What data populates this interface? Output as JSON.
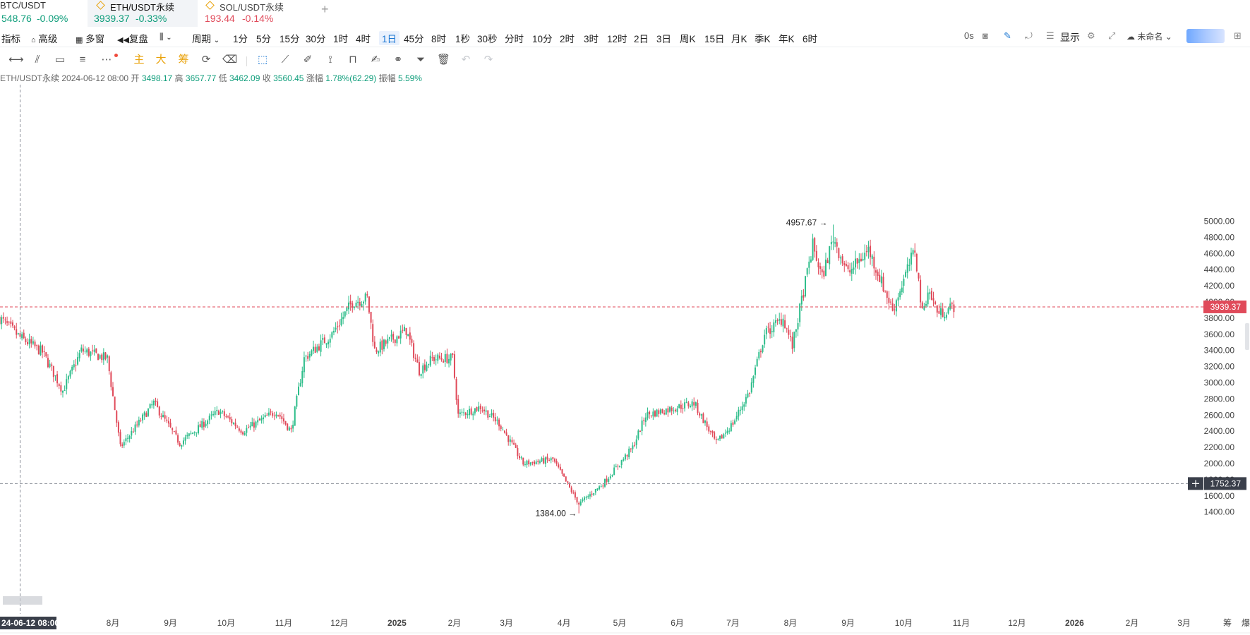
{
  "tabs": [
    {
      "symbol": "BTC/USDT",
      "price": "548.76",
      "change": "-0.09%",
      "trend": "up",
      "active": false
    },
    {
      "symbol": "ETH/USDT永续",
      "price": "3939.37",
      "change": "-0.33%",
      "trend": "up",
      "active": true
    },
    {
      "symbol": "SOL/USDT永续",
      "price": "193.44",
      "change": "-0.14%",
      "trend": "down",
      "active": false
    }
  ],
  "add_tab_label": "+",
  "toolbar": {
    "indicator": "指标",
    "advanced": "高级",
    "multi_window": "多窗",
    "replay": "复盘",
    "period": "周期",
    "periods": [
      "1分",
      "5分",
      "15分",
      "30分",
      "1时",
      "4时",
      "1日",
      "45分",
      "8时",
      "1秒",
      "30秒",
      "分时",
      "10分",
      "2时",
      "3时",
      "12时",
      "2日",
      "3日",
      "周K",
      "15日",
      "月K",
      "季K",
      "年K",
      "6时"
    ],
    "active_period": "1日",
    "timer": "0s",
    "display": "显示",
    "unnamed": "未命名"
  },
  "draw_tools": {
    "main": "主",
    "large": "大",
    "chips": "筹"
  },
  "info_bar": {
    "symbol": "ETH/USDT永续",
    "date": "2024-06-12 08:00",
    "open_label": "开",
    "open": "3498.17",
    "high_label": "高",
    "high": "3657.77",
    "low_label": "低",
    "low": "3462.09",
    "close_label": "收",
    "close": "3560.45",
    "change_label": "涨幅",
    "change": "1.78%(62.29)",
    "amplitude_label": "振幅",
    "amplitude": "5.59%"
  },
  "chart_data": {
    "type": "candlestick",
    "y_ticks": [
      1400,
      1600,
      1800,
      2000,
      2200,
      2400,
      2600,
      2800,
      3000,
      3200,
      3400,
      3600,
      3800,
      4000,
      4200,
      4400,
      4600,
      4800,
      5000
    ],
    "y_tick_labels": [
      "1400.00",
      "1600.00",
      "1800.00",
      "2000.00",
      "2200.00",
      "2400.00",
      "2600.00",
      "2800.00",
      "3000.00",
      "3200.00",
      "3400.00",
      "3600.00",
      "3800.00",
      "4000.00",
      "4200.00",
      "4400.00",
      "4600.00",
      "4800.00",
      "5000.00"
    ],
    "x_labels": [
      "8月",
      "9月",
      "10月",
      "11月",
      "12月",
      "2025",
      "2月",
      "3月",
      "4月",
      "5月",
      "6月",
      "7月",
      "8月",
      "9月",
      "10月",
      "11月",
      "12月",
      "2026",
      "2月",
      "3月"
    ],
    "x_label_dates": [
      "2024-08-01",
      "2024-09-01",
      "2024-10-01",
      "2024-11-01",
      "2024-12-01",
      "2025-01-01",
      "2025-02-01",
      "2025-03-01",
      "2025-04-01",
      "2025-05-01",
      "2025-06-01",
      "2025-07-01",
      "2025-08-01",
      "2025-09-01",
      "2025-10-01",
      "2025-11-01",
      "2025-12-01",
      "2026-01-01",
      "2026-02-01",
      "2026-03-01"
    ],
    "bottom_right_labels": [
      "筹",
      "爆"
    ],
    "crosshair_date_label": "24-06-12 08:00",
    "crosshair_price_label": "1752.37",
    "crosshair_price": 1752.37,
    "current_price": 3939.37,
    "current_price_label": "3939.37",
    "max_label": "4957.67",
    "max_date": "2025-08-24",
    "max_value": 4957.67,
    "min_label": "1384.00",
    "min_date": "2025-04-09",
    "min_value": 1384.0,
    "keypoints": [
      [
        "2024-06-01",
        3800
      ],
      [
        "2024-06-12",
        3560
      ],
      [
        "2024-06-24",
        3380
      ],
      [
        "2024-07-05",
        2900
      ],
      [
        "2024-07-15",
        3400
      ],
      [
        "2024-07-29",
        3300
      ],
      [
        "2024-08-05",
        2200
      ],
      [
        "2024-08-23",
        2750
      ],
      [
        "2024-09-06",
        2250
      ],
      [
        "2024-09-27",
        2650
      ],
      [
        "2024-10-10",
        2400
      ],
      [
        "2024-10-28",
        2650
      ],
      [
        "2024-11-05",
        2400
      ],
      [
        "2024-11-12",
        3300
      ],
      [
        "2024-11-27",
        3600
      ],
      [
        "2024-12-08",
        4000
      ],
      [
        "2024-12-16",
        4050
      ],
      [
        "2024-12-20",
        3400
      ],
      [
        "2025-01-06",
        3650
      ],
      [
        "2025-01-13",
        3150
      ],
      [
        "2025-01-20",
        3300
      ],
      [
        "2025-01-31",
        3300
      ],
      [
        "2025-02-03",
        2600
      ],
      [
        "2025-02-15",
        2700
      ],
      [
        "2025-02-25",
        2500
      ],
      [
        "2025-03-10",
        2000
      ],
      [
        "2025-03-26",
        2050
      ],
      [
        "2025-04-09",
        1500
      ],
      [
        "2025-04-22",
        1750
      ],
      [
        "2025-05-08",
        2200
      ],
      [
        "2025-05-15",
        2600
      ],
      [
        "2025-06-10",
        2750
      ],
      [
        "2025-06-22",
        2250
      ],
      [
        "2025-07-01",
        2500
      ],
      [
        "2025-07-10",
        2900
      ],
      [
        "2025-07-18",
        3600
      ],
      [
        "2025-07-28",
        3800
      ],
      [
        "2025-08-02",
        3450
      ],
      [
        "2025-08-13",
        4700
      ],
      [
        "2025-08-18",
        4300
      ],
      [
        "2025-08-24",
        4800
      ],
      [
        "2025-09-01",
        4350
      ],
      [
        "2025-09-12",
        4650
      ],
      [
        "2025-09-25",
        3900
      ],
      [
        "2025-10-07",
        4650
      ],
      [
        "2025-10-11",
        3850
      ],
      [
        "2025-10-14",
        4150
      ],
      [
        "2025-10-20",
        3850
      ],
      [
        "2025-10-28",
        3950
      ]
    ]
  }
}
